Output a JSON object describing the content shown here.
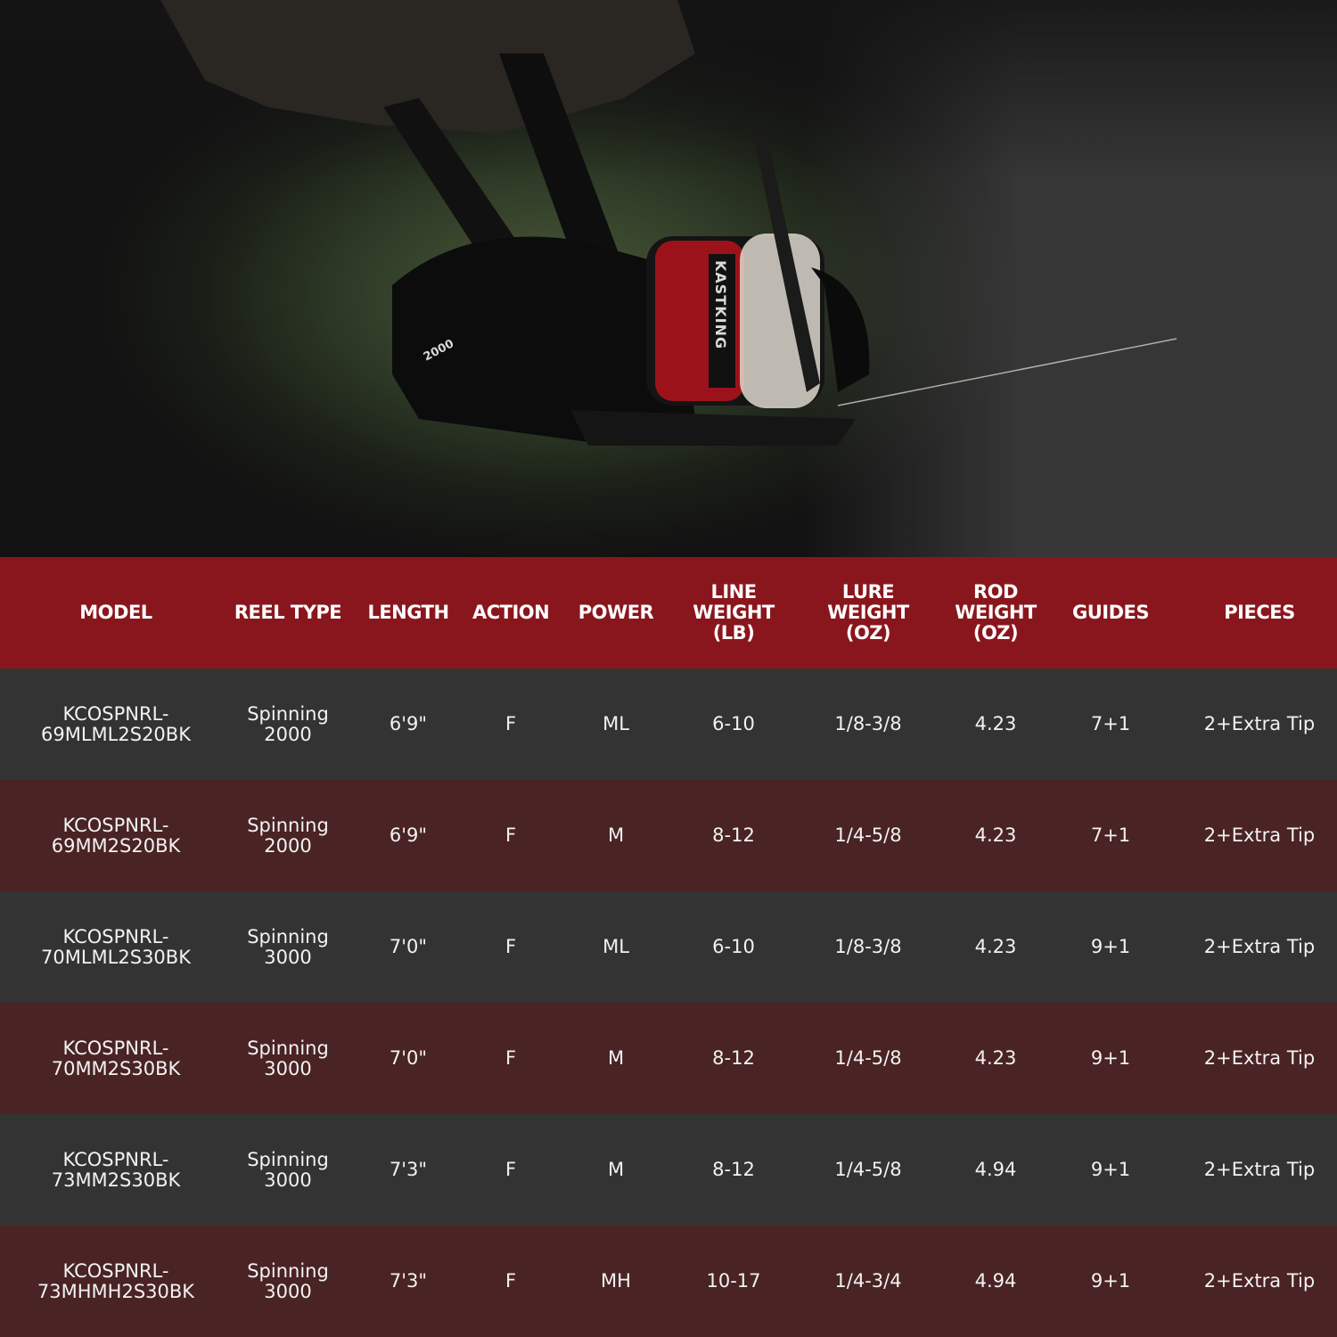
{
  "hero": {
    "image": "hand holding black and red spinning reel with white line, blurred green background",
    "reel_lettering": [
      "KASTKING",
      "2000"
    ],
    "colors": {
      "reel_body": "#0d0d0d",
      "accent": "#b3121c",
      "line": "#e8e4d8"
    }
  },
  "table": {
    "colors": {
      "header_bg": "#8a161d",
      "row_dark": "#333333",
      "row_red": "#4a2324"
    },
    "headers": [
      [
        "MODEL"
      ],
      [
        "REEL TYPE"
      ],
      [
        "LENGTH"
      ],
      [
        "ACTION"
      ],
      [
        "POWER"
      ],
      [
        "LINE",
        "WEIGHT",
        "(LB)"
      ],
      [
        "LURE",
        "WEIGHT",
        "(OZ)"
      ],
      [
        "ROD",
        "WEIGHT",
        "(OZ)"
      ],
      [
        "GUIDES"
      ],
      [
        "PIECES"
      ]
    ],
    "rows": [
      [
        [
          "KCOSPNRL-",
          "69MLML2S20BK"
        ],
        [
          "Spinning",
          "2000"
        ],
        [
          "6'9\""
        ],
        [
          "F"
        ],
        [
          "ML"
        ],
        [
          "6-10"
        ],
        [
          "1/8-3/8"
        ],
        [
          "4.23"
        ],
        [
          "7+1"
        ],
        [
          "2+Extra Tip"
        ]
      ],
      [
        [
          "KCOSPNRL-",
          "69MM2S20BK"
        ],
        [
          "Spinning",
          "2000"
        ],
        [
          "6'9\""
        ],
        [
          "F"
        ],
        [
          "M"
        ],
        [
          "8-12"
        ],
        [
          "1/4-5/8"
        ],
        [
          "4.23"
        ],
        [
          "7+1"
        ],
        [
          "2+Extra Tip"
        ]
      ],
      [
        [
          "KCOSPNRL-",
          "70MLML2S30BK"
        ],
        [
          "Spinning",
          "3000"
        ],
        [
          "7'0\""
        ],
        [
          "F"
        ],
        [
          "ML"
        ],
        [
          "6-10"
        ],
        [
          "1/8-3/8"
        ],
        [
          "4.23"
        ],
        [
          "9+1"
        ],
        [
          "2+Extra Tip"
        ]
      ],
      [
        [
          "KCOSPNRL-",
          "70MM2S30BK"
        ],
        [
          "Spinning",
          "3000"
        ],
        [
          "7'0\""
        ],
        [
          "F"
        ],
        [
          "M"
        ],
        [
          "8-12"
        ],
        [
          "1/4-5/8"
        ],
        [
          "4.23"
        ],
        [
          "9+1"
        ],
        [
          "2+Extra Tip"
        ]
      ],
      [
        [
          "KCOSPNRL-",
          "73MM2S30BK"
        ],
        [
          "Spinning",
          "3000"
        ],
        [
          "7'3\""
        ],
        [
          "F"
        ],
        [
          "M"
        ],
        [
          "8-12"
        ],
        [
          "1/4-5/8"
        ],
        [
          "4.94"
        ],
        [
          "9+1"
        ],
        [
          "2+Extra Tip"
        ]
      ],
      [
        [
          "KCOSPNRL-",
          "73MHMH2S30BK"
        ],
        [
          "Spinning",
          "3000"
        ],
        [
          "7'3\""
        ],
        [
          "F"
        ],
        [
          "MH"
        ],
        [
          "10-17"
        ],
        [
          "1/4-3/4"
        ],
        [
          "4.94"
        ],
        [
          "9+1"
        ],
        [
          "2+Extra Tip"
        ]
      ]
    ]
  }
}
